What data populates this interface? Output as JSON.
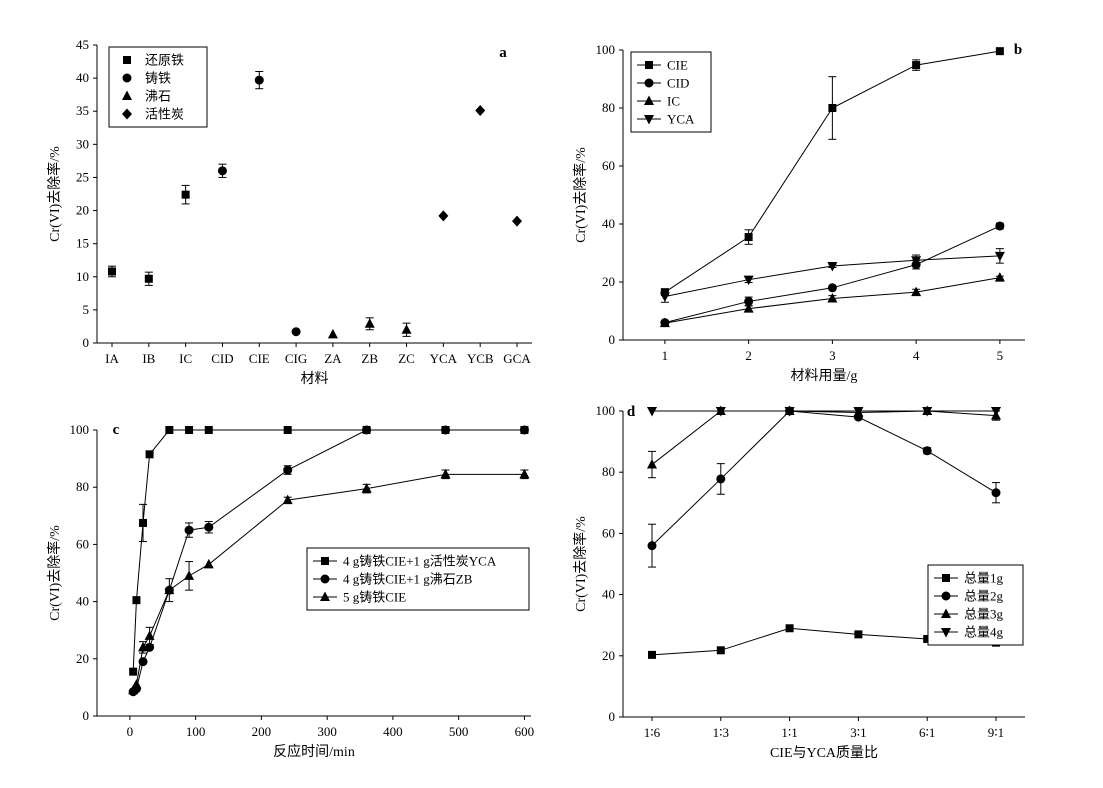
{
  "chart_data": [
    {
      "panel": "a",
      "type": "scatter",
      "xlabel": "材料",
      "ylabel": "Cr(VI)去除率/%",
      "categories": [
        "IA",
        "IB",
        "IC",
        "CID",
        "CIE",
        "CIG",
        "ZA",
        "ZB",
        "ZC",
        "YCA",
        "YCB",
        "GCA"
      ],
      "ylim": [
        0,
        45
      ],
      "yticks": [
        0,
        5,
        10,
        15,
        20,
        25,
        30,
        35,
        40,
        45
      ],
      "legend_position": "top-left",
      "series": [
        {
          "name": "还原铁",
          "marker": "square",
          "x": [
            "IA",
            "IB",
            "IC"
          ],
          "values": [
            10.8,
            9.7,
            22.4
          ],
          "errors": [
            0.8,
            1.0,
            1.4
          ]
        },
        {
          "name": "铸铁",
          "marker": "circle",
          "x": [
            "CID",
            "CIE",
            "CIG"
          ],
          "values": [
            26.0,
            39.7,
            1.7
          ],
          "errors": [
            1.0,
            1.3,
            0
          ]
        },
        {
          "name": "沸石",
          "marker": "triangle",
          "x": [
            "ZA",
            "ZB",
            "ZC"
          ],
          "values": [
            1.3,
            2.9,
            2.0
          ],
          "errors": [
            0,
            0.9,
            1.0
          ]
        },
        {
          "name": "活性炭",
          "marker": "diamond",
          "x": [
            "YCA",
            "YCB",
            "GCA"
          ],
          "values": [
            19.2,
            35.1,
            18.4
          ],
          "errors": [
            0,
            0,
            0
          ]
        }
      ]
    },
    {
      "panel": "b",
      "type": "line",
      "xlabel": "材料用量/g",
      "ylabel": "Cr(VI)去除率/%",
      "xlim": [
        0.5,
        5.3
      ],
      "xticks": [
        1,
        2,
        3,
        4,
        5
      ],
      "ylim": [
        0,
        100
      ],
      "yticks": [
        0,
        20,
        40,
        60,
        80,
        100
      ],
      "legend_position": "top-left",
      "series": [
        {
          "name": "CIE",
          "marker": "square",
          "x": [
            1,
            2,
            3,
            4,
            5
          ],
          "values": [
            16.5,
            35.5,
            80.0,
            94.8,
            99.6
          ],
          "errors": [
            0,
            2.5,
            10.8,
            1.8,
            0
          ]
        },
        {
          "name": "CID",
          "marker": "circle",
          "x": [
            1,
            2,
            3,
            4,
            5
          ],
          "values": [
            6.0,
            13.3,
            18.0,
            26.0,
            39.3
          ],
          "errors": [
            0,
            1.5,
            0,
            1.5,
            1.0
          ]
        },
        {
          "name": "IC",
          "marker": "triangle",
          "x": [
            1,
            2,
            3,
            4,
            5
          ],
          "values": [
            5.8,
            10.8,
            14.3,
            16.5,
            21.5
          ],
          "errors": [
            0,
            1.0,
            1.0,
            1.0,
            0.5
          ]
        },
        {
          "name": "YCA",
          "marker": "triangle-down",
          "x": [
            1,
            2,
            3,
            4,
            5
          ],
          "values": [
            15.0,
            20.8,
            25.5,
            27.5,
            29.0
          ],
          "errors": [
            2.0,
            1.0,
            0.5,
            1.8,
            2.5
          ]
        }
      ]
    },
    {
      "panel": "c",
      "type": "line",
      "xlabel": "反应时间/min",
      "ylabel": "Cr(VI)去除率/%",
      "xlim": [
        -50,
        610
      ],
      "xticks": [
        0,
        100,
        200,
        300,
        400,
        500,
        600
      ],
      "ylim": [
        0,
        100
      ],
      "yticks": [
        0,
        20,
        40,
        60,
        80,
        100
      ],
      "legend_position": "center-right",
      "series": [
        {
          "name": "4 g铸铁CIE+1 g活性炭YCA",
          "marker": "square",
          "x": [
            5,
            10,
            20,
            30,
            60,
            90,
            120,
            240,
            360,
            480,
            600
          ],
          "values": [
            15.5,
            40.5,
            67.5,
            91.5,
            100,
            100,
            100,
            100,
            100,
            100,
            100
          ],
          "errors": [
            0,
            0,
            6.5,
            0,
            0,
            0,
            0,
            0,
            0,
            0,
            0
          ]
        },
        {
          "name": "4 g铸铁CIE+1 g沸石ZB",
          "marker": "circle",
          "x": [
            5,
            10,
            20,
            30,
            60,
            90,
            120,
            240,
            360,
            480,
            600
          ],
          "values": [
            8.5,
            9.5,
            19.0,
            24.0,
            44.0,
            65.0,
            66.0,
            86.0,
            100,
            100,
            100
          ],
          "errors": [
            0,
            0,
            0,
            0,
            0,
            2.5,
            2.0,
            1.5,
            0,
            0,
            0
          ]
        },
        {
          "name": "5 g铸铁CIE",
          "marker": "triangle",
          "x": [
            5,
            10,
            20,
            30,
            60,
            90,
            120,
            240,
            360,
            480,
            600
          ],
          "values": [
            9.0,
            11.0,
            24.0,
            28.0,
            44.0,
            49.0,
            53.0,
            75.5,
            79.5,
            84.5,
            84.5
          ],
          "errors": [
            0,
            0,
            2.0,
            3.0,
            4.0,
            5.0,
            0,
            1.0,
            1.5,
            1.5,
            1.5
          ]
        }
      ]
    },
    {
      "panel": "d",
      "type": "line",
      "xlabel": "CIE与YCA质量比",
      "ylabel": "Cr(VI)去除率/%",
      "categories": [
        "1∶6",
        "1∶3",
        "1∶1",
        "3∶1",
        "6∶1",
        "9∶1"
      ],
      "ylim": [
        0,
        100
      ],
      "yticks": [
        0,
        20,
        40,
        60,
        80,
        100
      ],
      "legend_position": "bottom-right",
      "series": [
        {
          "name": "总量1g",
          "marker": "square",
          "values": [
            20.3,
            21.8,
            29.0,
            27.0,
            25.5,
            24.3
          ],
          "errors": [
            0,
            0,
            0,
            0,
            0,
            0
          ]
        },
        {
          "name": "总量2g",
          "marker": "circle",
          "values": [
            56.0,
            77.8,
            100,
            98.0,
            87.0,
            73.3
          ],
          "errors": [
            7.0,
            5.0,
            0,
            0,
            1.0,
            3.3
          ]
        },
        {
          "name": "总量3g",
          "marker": "triangle",
          "values": [
            82.5,
            100,
            100,
            99.5,
            100,
            98.5
          ],
          "errors": [
            4.3,
            0,
            0,
            0,
            0,
            1.5
          ]
        },
        {
          "name": "总量4g",
          "marker": "triangle-down",
          "values": [
            100,
            100,
            100,
            100,
            100,
            100
          ],
          "errors": [
            0,
            0,
            0,
            0,
            0,
            0
          ]
        }
      ]
    }
  ]
}
